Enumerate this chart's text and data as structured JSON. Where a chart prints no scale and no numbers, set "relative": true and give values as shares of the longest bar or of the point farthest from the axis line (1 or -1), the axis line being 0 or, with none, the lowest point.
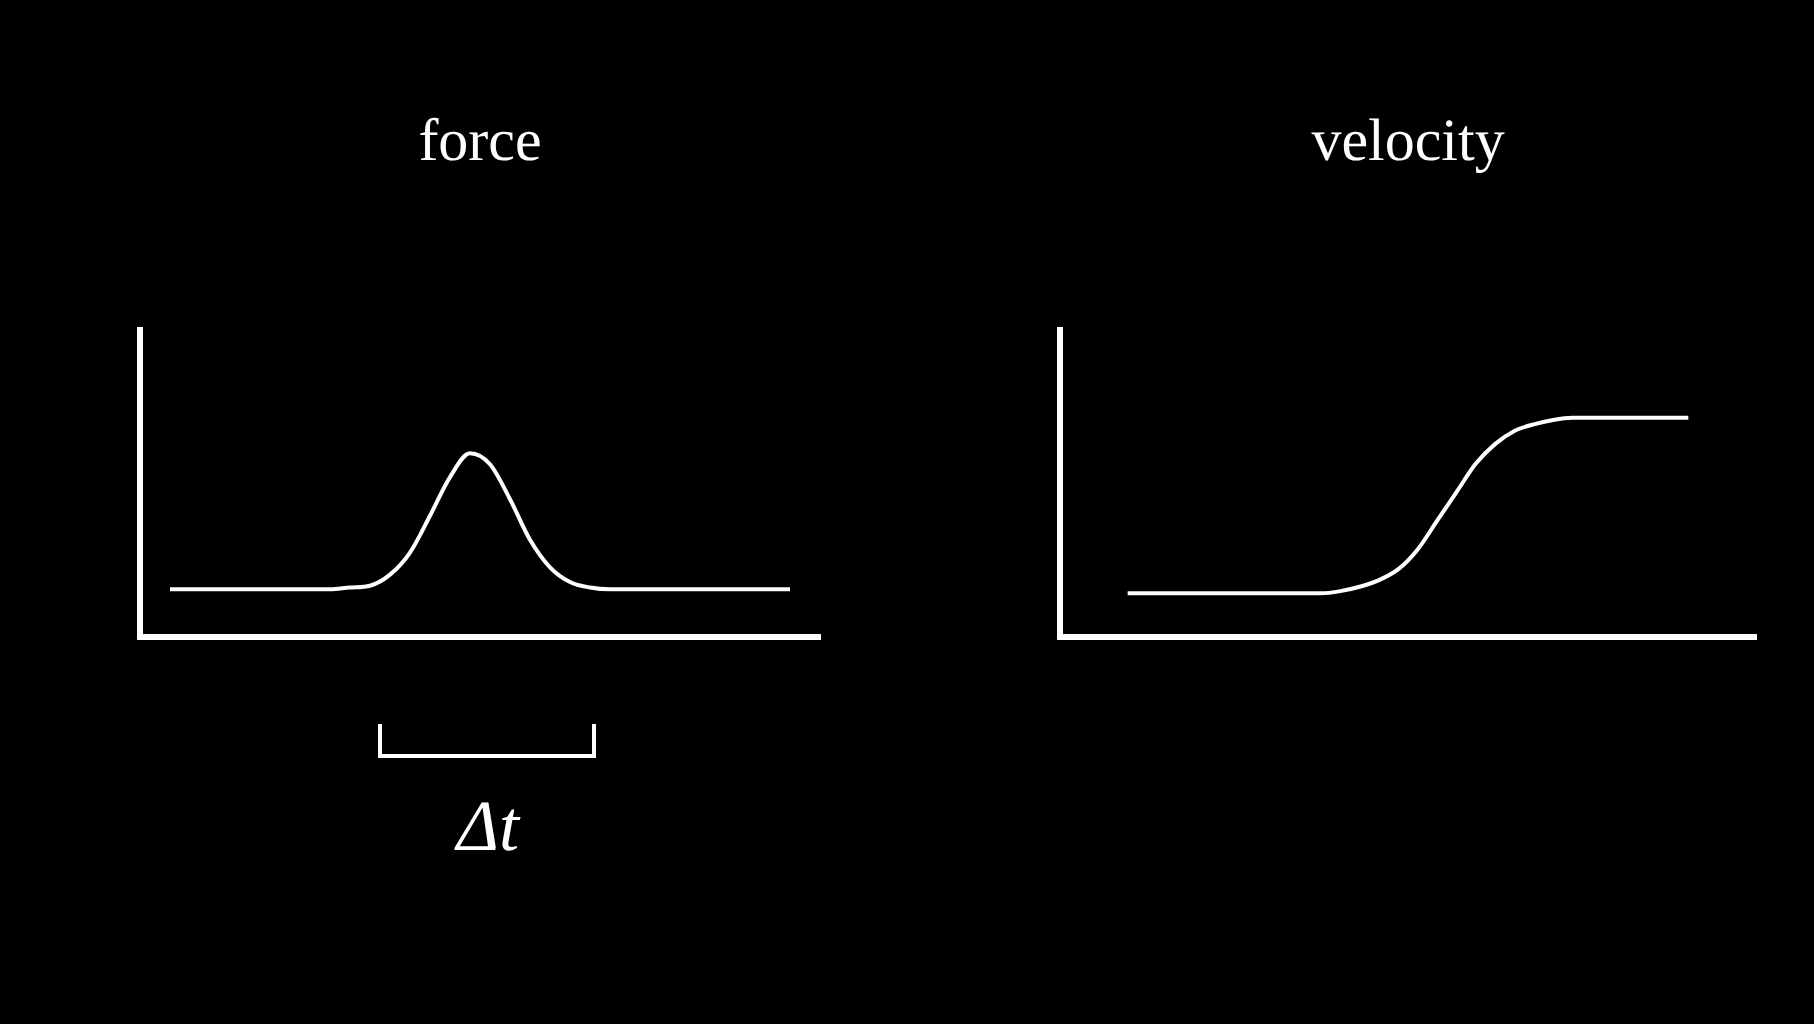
{
  "chart_data": [
    {
      "type": "line",
      "title": "force",
      "relative": true,
      "grid": false,
      "legend": false,
      "marker": "none",
      "annotations": [
        "Δt"
      ],
      "categories": [
        null,
        null,
        null,
        null,
        null,
        null,
        null,
        null,
        null,
        null,
        null,
        null,
        null,
        null,
        null,
        null,
        null,
        null,
        null,
        null,
        null,
        null,
        null,
        null,
        null,
        null,
        null,
        null,
        null,
        null,
        null,
        null,
        null,
        null
      ],
      "series": [
        {
          "color": "#ffffff",
          "values": [
            null,
            0.26,
            0.26,
            0.26,
            0.26,
            0.26,
            0.26,
            0.26,
            0.26,
            0.26,
            0.27,
            0.28,
            0.34,
            0.46,
            0.66,
            0.87,
            1,
            0.94,
            0.75,
            0.53,
            0.38,
            0.3,
            0.27,
            0.26,
            0.26,
            0.26,
            0.26,
            0.26,
            0.26,
            0.26,
            0.26,
            0.26,
            0.26,
            null
          ]
        }
      ]
    },
    {
      "type": "line",
      "title": "velocity",
      "relative": true,
      "grid": false,
      "legend": false,
      "marker": "none",
      "categories": [
        null,
        null,
        null,
        null,
        null,
        null,
        null,
        null,
        null,
        null,
        null,
        null,
        null,
        null,
        null,
        null,
        null,
        null,
        null,
        null,
        null,
        null,
        null,
        null,
        null,
        null,
        null,
        null,
        null,
        null,
        null,
        null,
        null,
        null,
        null,
        null
      ],
      "series": [
        {
          "color": "#ffffff",
          "values": [
            null,
            null,
            null,
            0.2,
            0.2,
            0.2,
            0.2,
            0.2,
            0.2,
            0.2,
            0.2,
            0.2,
            0.2,
            0.2,
            0.21,
            0.23,
            0.26,
            0.31,
            0.4,
            0.53,
            0.66,
            0.79,
            0.88,
            0.94,
            0.97,
            0.99,
            1,
            1,
            1,
            1,
            1,
            1,
            1,
            null,
            null,
            null
          ]
        }
      ]
    }
  ]
}
